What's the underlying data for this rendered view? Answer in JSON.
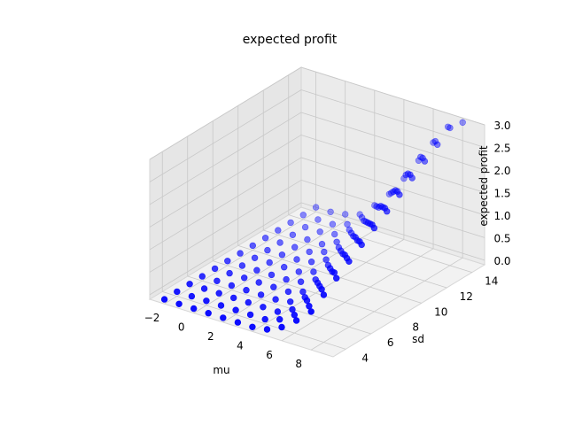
{
  "chart_data": {
    "type": "scatter",
    "projection": "3d",
    "title": "expected profit",
    "xlabel": "mu",
    "ylabel": "sd",
    "zlabel": "expected profit",
    "x_ticks": [
      "−2",
      "0",
      "2",
      "4",
      "6",
      "8"
    ],
    "y_ticks": [
      "4",
      "6",
      "8",
      "10",
      "12",
      "14"
    ],
    "z_ticks": [
      "0.0",
      "0.5",
      "1.0",
      "1.5",
      "2.0",
      "2.5",
      "3.0"
    ],
    "xlim": [
      -3,
      9.5
    ],
    "ylim": [
      3,
      15
    ],
    "zlim": [
      -0.1,
      3.0
    ],
    "grid": true,
    "marker_color": "#0000ff",
    "series": [
      {
        "mu": [
          -2,
          -1,
          0,
          1,
          2,
          3,
          4,
          5,
          6,
          7,
          8
        ],
        "sd": [
          3,
          4,
          5,
          6,
          7,
          8,
          9,
          10,
          11,
          12,
          13,
          14,
          15
        ],
        "expected_profit": [
          [
            0.0,
            0.0,
            0.0,
            0.0,
            0.0,
            0.0,
            0.0,
            0.0,
            0.0,
            0.0,
            0.0,
            0.0,
            0.0
          ],
          [
            0.0,
            0.0,
            0.0,
            0.0,
            0.0,
            0.0,
            0.0,
            0.0,
            0.0,
            0.0,
            0.0,
            0.0,
            0.0
          ],
          [
            0.0,
            0.0,
            0.0,
            0.0,
            0.0,
            0.0,
            0.0,
            0.0,
            0.0,
            0.0,
            0.0,
            0.0,
            0.05
          ],
          [
            0.0,
            0.0,
            0.0,
            0.0,
            0.0,
            0.0,
            0.0,
            0.0,
            0.0,
            0.0,
            0.05,
            0.1,
            0.15
          ],
          [
            0.0,
            0.0,
            0.0,
            0.0,
            0.0,
            0.0,
            0.0,
            0.05,
            0.1,
            0.15,
            0.25,
            0.35,
            0.45
          ],
          [
            0.0,
            0.0,
            0.0,
            0.0,
            0.0,
            0.05,
            0.1,
            0.2,
            0.3,
            0.45,
            0.55,
            0.7,
            0.8
          ],
          [
            0.0,
            0.0,
            0.0,
            0.05,
            0.1,
            0.2,
            0.35,
            0.5,
            0.65,
            0.8,
            0.95,
            1.1,
            1.25
          ],
          [
            0.05,
            0.1,
            0.15,
            0.25,
            0.4,
            0.55,
            0.7,
            0.9,
            1.05,
            1.25,
            1.4,
            1.6,
            1.75
          ],
          [
            0.2,
            0.3,
            0.45,
            0.6,
            0.75,
            0.95,
            1.1,
            1.3,
            1.5,
            1.7,
            1.9,
            2.1,
            2.25
          ],
          [
            0.45,
            0.6,
            0.8,
            1.0,
            1.15,
            1.35,
            1.55,
            1.75,
            1.95,
            2.15,
            2.35,
            2.55,
            2.7
          ],
          [
            0.75,
            0.95,
            1.15,
            1.35,
            1.55,
            1.75,
            1.95,
            2.15,
            2.35,
            2.55,
            2.75,
            2.95,
            2.9
          ]
        ]
      }
    ]
  }
}
